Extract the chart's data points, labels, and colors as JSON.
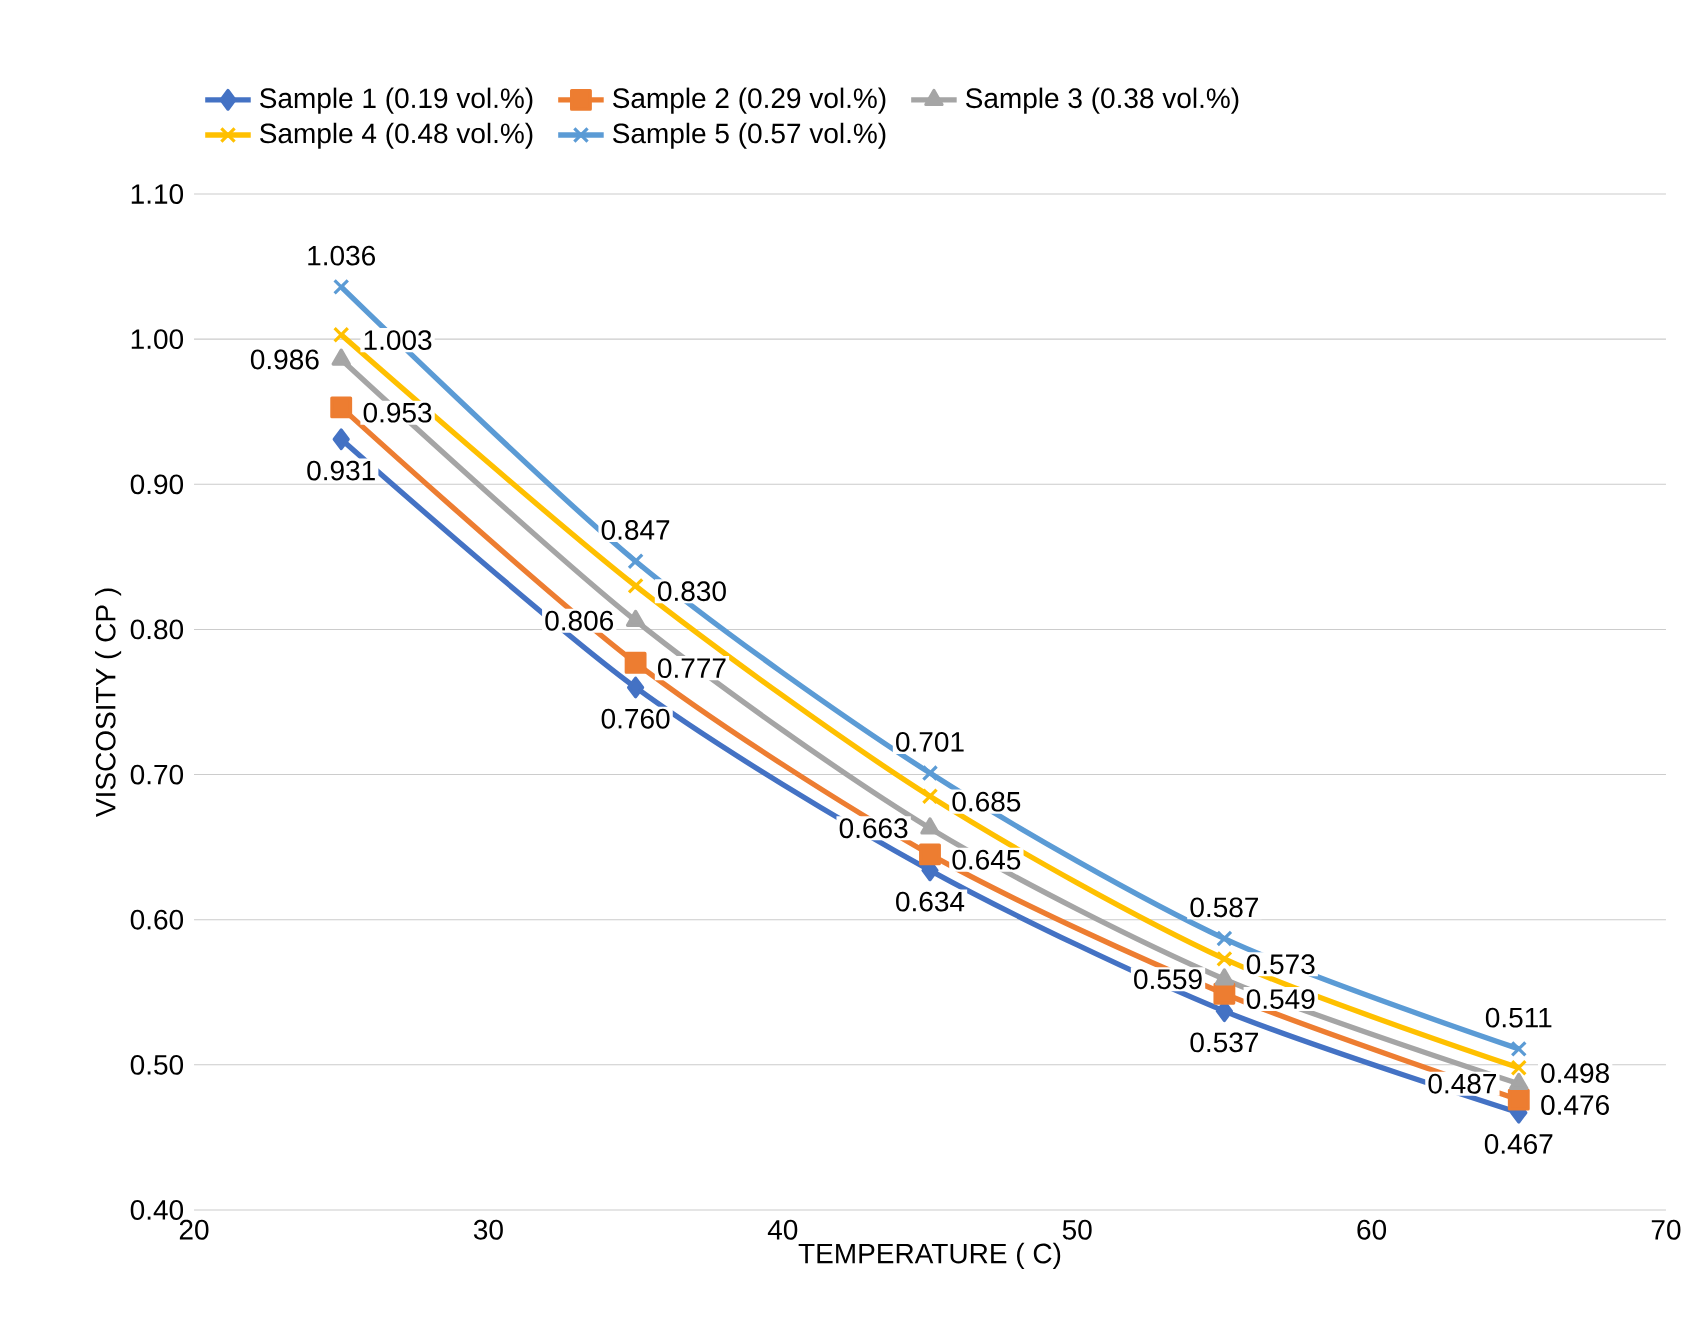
{
  "chart_data": {
    "type": "line",
    "xlabel": "TEMPERATURE ( C)",
    "ylabel": "VISCOSITY ( CP )",
    "x": [
      25,
      35,
      45,
      55,
      65
    ],
    "series": [
      {
        "name": "Sample 1 (0.19 vol.%)",
        "color": "#4472c4",
        "marker": "diamond",
        "values": [
          0.931,
          0.76,
          0.634,
          0.537,
          0.467
        ],
        "value_labels": [
          "0.931",
          "0.760",
          "0.634",
          "0.537",
          "0.467"
        ]
      },
      {
        "name": "Sample 2 (0.29 vol.%)",
        "color": "#ed7d31",
        "marker": "square",
        "values": [
          0.953,
          0.777,
          0.645,
          0.549,
          0.476
        ],
        "value_labels": [
          "0.953",
          "0.777",
          "0.645",
          "0.549",
          "0.476"
        ]
      },
      {
        "name": "Sample 3 (0.38 vol.%)",
        "color": "#a5a5a5",
        "marker": "triangle",
        "values": [
          0.986,
          0.806,
          0.663,
          0.559,
          0.487
        ],
        "value_labels": [
          "0.986",
          "0.806",
          "0.663",
          "0.559",
          "0.487"
        ]
      },
      {
        "name": "Sample 4 (0.48 vol.%)",
        "color": "#ffc000",
        "marker": "cross",
        "values": [
          1.003,
          0.83,
          0.685,
          0.573,
          0.498
        ],
        "value_labels": [
          "1.003",
          "0.830",
          "0.685",
          "0.573",
          "0.498"
        ]
      },
      {
        "name": "Sample 5 (0.57 vol.%)",
        "color": "#5b9bd5",
        "marker": "cross",
        "values": [
          1.036,
          0.847,
          0.701,
          0.587,
          0.511
        ],
        "value_labels": [
          "1.036",
          "0.847",
          "0.701",
          "0.587",
          "0.511"
        ]
      }
    ],
    "xlim": [
      20,
      70
    ],
    "xticks": [
      20,
      30,
      40,
      50,
      60,
      70
    ],
    "ylim": [
      0.4,
      1.1
    ],
    "yticks": [
      {
        "value": 0.4,
        "label": "0.40"
      },
      {
        "value": 0.5,
        "label": "0.50"
      },
      {
        "value": 0.6,
        "label": "0.60"
      },
      {
        "value": 0.7,
        "label": "0.70"
      },
      {
        "value": 0.8,
        "label": "0.80"
      },
      {
        "value": 0.9,
        "label": "0.90"
      },
      {
        "value": 1.0,
        "label": "1.00"
      },
      {
        "value": 1.1,
        "label": "1.10"
      }
    ],
    "grid": "y",
    "legend": "top",
    "line_style": "solid"
  }
}
